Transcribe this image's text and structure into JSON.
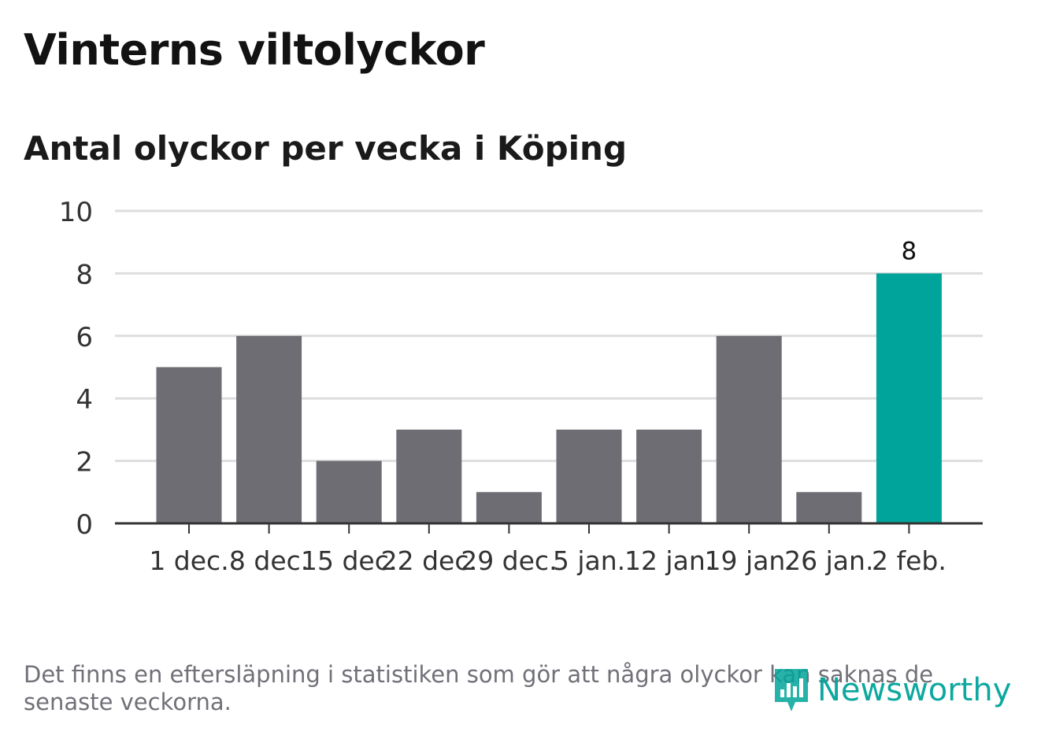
{
  "title": "Vinterns viltolyckor",
  "subtitle": "Antal olyckor per vecka i Köping",
  "footnote": "Det finns en eftersläpning i statistiken som gör att några olyckor kan saknas de senaste veckorna.",
  "logo_text": "Newsworthy",
  "colors": {
    "bar": "#6e6d73",
    "highlight": "#00a49a",
    "grid": "#dddddd",
    "axis": "#333333",
    "text": "#333333"
  },
  "chart_data": {
    "type": "bar",
    "categories": [
      "1 dec.",
      "8 dec.",
      "15 dec.",
      "22 dec.",
      "29 dec.",
      "5 jan.",
      "12 jan.",
      "19 jan.",
      "26 jan.",
      "2 feb."
    ],
    "values": [
      5,
      6,
      2,
      3,
      1,
      3,
      3,
      6,
      1,
      8
    ],
    "highlight_index": 9,
    "data_labels": [
      null,
      null,
      null,
      null,
      null,
      null,
      null,
      null,
      null,
      "8"
    ],
    "y_ticks": [
      0,
      2,
      4,
      6,
      8,
      10
    ],
    "ylim": [
      0,
      10
    ],
    "xlabel": "",
    "ylabel": "",
    "grid": true
  }
}
